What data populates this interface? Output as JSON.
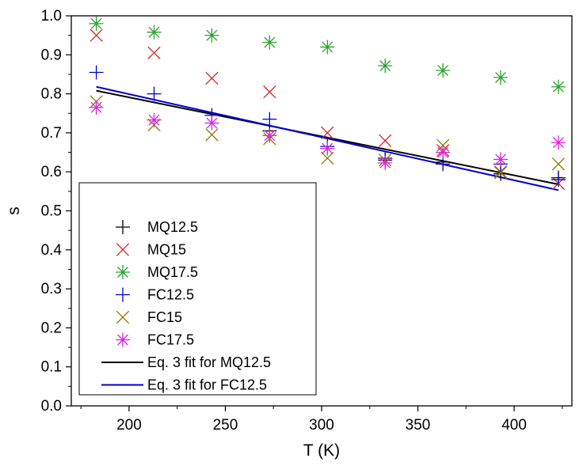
{
  "chart_data": {
    "type": "scatter",
    "xlabel": "T (K)",
    "ylabel": "s",
    "xlim": [
      170,
      430
    ],
    "ylim": [
      0,
      1
    ],
    "xticks": [
      200,
      250,
      300,
      350,
      400
    ],
    "xtick_labels": [
      "200",
      "250",
      "300",
      "350",
      "400"
    ],
    "yticks": [
      0,
      0.1,
      0.2,
      0.3,
      0.4,
      0.5,
      0.6,
      0.7,
      0.8,
      0.9,
      1.0
    ],
    "ytick_labels": [
      "0.0",
      "0.1",
      "0.2",
      "0.3",
      "0.4",
      "0.5",
      "0.6",
      "0.7",
      "0.8",
      "0.9",
      "1.0"
    ],
    "grid": false,
    "legend_position": "bottom-left",
    "x": [
      183,
      213,
      243,
      273,
      303,
      333,
      363,
      393,
      423
    ],
    "series": [
      {
        "name": "MQ12.5",
        "marker": "plus",
        "color": "#000000",
        "values": [
          null,
          null,
          null,
          0.705,
          null,
          0.63,
          0.625,
          0.595,
          0.585
        ]
      },
      {
        "name": "MQ15",
        "marker": "cross",
        "color": "#d62728",
        "values": [
          0.95,
          0.905,
          0.84,
          0.805,
          0.7,
          0.68,
          0.655,
          0.6,
          0.57
        ]
      },
      {
        "name": "MQ17.5",
        "marker": "asterisk",
        "color": "#2ca02c",
        "values": [
          0.98,
          0.958,
          0.95,
          0.932,
          0.92,
          0.872,
          0.86,
          0.842,
          0.818
        ]
      },
      {
        "name": "FC12.5",
        "marker": "plus",
        "color": "#0000cc",
        "values": [
          0.855,
          0.8,
          0.745,
          0.735,
          0.665,
          0.635,
          0.62,
          0.62,
          0.58
        ]
      },
      {
        "name": "FC15",
        "marker": "cross",
        "color": "#808000",
        "values": [
          0.78,
          0.72,
          0.695,
          0.685,
          0.635,
          0.63,
          0.668,
          0.598,
          0.62
        ]
      },
      {
        "name": "FC17.5",
        "marker": "asterisk",
        "color": "#e020e0",
        "values": [
          0.765,
          0.733,
          0.725,
          0.693,
          0.66,
          0.623,
          0.65,
          0.632,
          0.675
        ]
      }
    ],
    "fit_lines": [
      {
        "name": "Eq. 3 fit for MQ12.5",
        "color": "#000000",
        "x": [
          183,
          423
        ],
        "y": [
          0.808,
          0.568
        ]
      },
      {
        "name": "Eq. 3 fit for FC12.5",
        "color": "#0000cc",
        "x": [
          183,
          423
        ],
        "y": [
          0.818,
          0.553
        ]
      }
    ]
  }
}
